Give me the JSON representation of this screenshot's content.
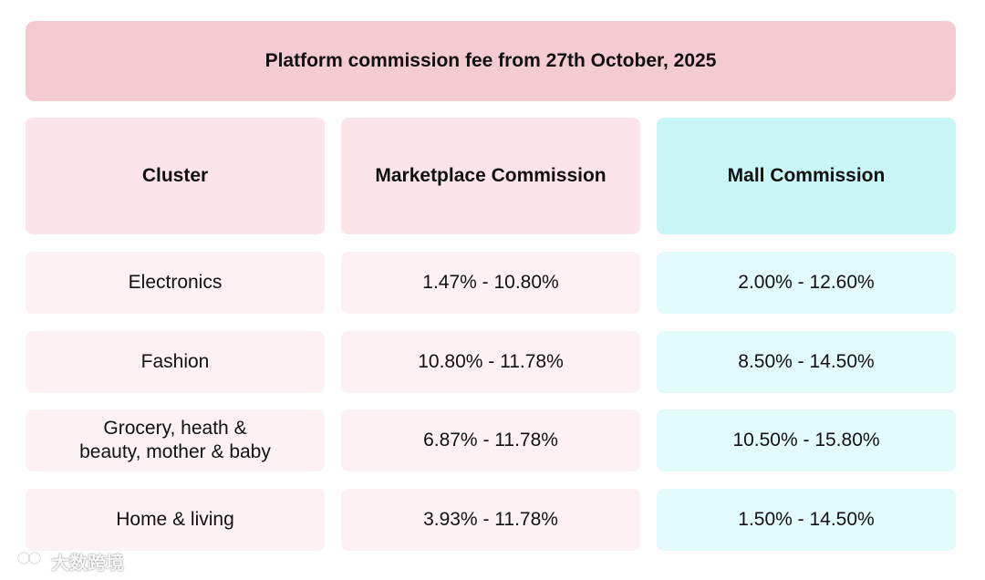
{
  "title": "Platform commission fee from 27th October, 2025",
  "headers": {
    "cluster": "Cluster",
    "marketplace": "Marketplace Commission",
    "mall": "Mall Commission"
  },
  "rows": [
    {
      "cluster": "Electronics",
      "marketplace": "1.47% - 10.80%",
      "mall": "2.00% - 12.60%"
    },
    {
      "cluster": "Fashion",
      "marketplace": "10.80% - 11.78%",
      "mall": "8.50% - 14.50%"
    },
    {
      "cluster": "Grocery, heath &\nbeauty, mother & baby",
      "marketplace": "6.87% - 11.78%",
      "mall": "10.50% - 15.80%"
    },
    {
      "cluster": "Home & living",
      "marketplace": "3.93% - 11.78%",
      "mall": "1.50% - 14.50%"
    }
  ],
  "watermark": {
    "text": "大数跨境",
    "icon": "brand-logo-icon"
  },
  "colors": {
    "title_bg": "#f5cbd3",
    "pink_header": "#fbe5e9",
    "cyan_header": "#c9f7f8",
    "pink_cell": "#fdf1f3",
    "cyan_cell": "#e2fbfb"
  }
}
